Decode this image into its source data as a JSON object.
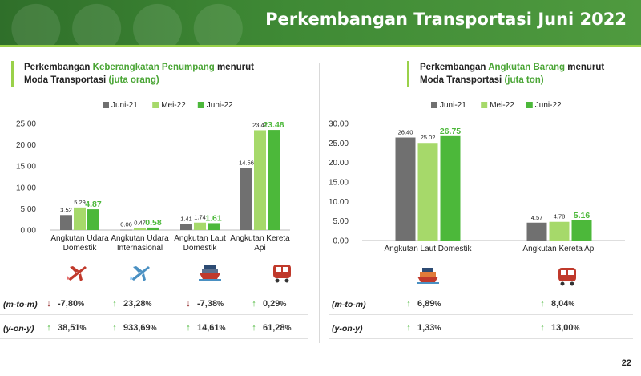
{
  "header": {
    "title": "Perkembangan Transportasi Juni 2022"
  },
  "colors": {
    "series": [
      "#707070",
      "#a6d96a",
      "#4cb83a"
    ],
    "accent": "#4aa535",
    "down": "#8b1a1a"
  },
  "left": {
    "title_line1_pre": "Perkembangan ",
    "title_line1_hl": "Keberangkatan Penumpang",
    "title_line1_post": " menurut",
    "title_line2_pre": "Moda Transportasi ",
    "title_line2_hl": "(juta orang)",
    "icons": [
      "airplane-icon",
      "airplane-international-icon",
      "ship-icon",
      "train-icon"
    ],
    "rows": [
      {
        "label": "(m-to-m)",
        "values": [
          {
            "dir": "down",
            "num": "-7,80",
            "pct": "%"
          },
          {
            "dir": "up",
            "num": "23,28",
            "pct": "%"
          },
          {
            "dir": "down",
            "num": "-7,38",
            "pct": "%"
          },
          {
            "dir": "up",
            "num": "0,29",
            "pct": "%"
          }
        ]
      },
      {
        "label": "(y-on-y)",
        "values": [
          {
            "dir": "up",
            "num": "38,51",
            "pct": "%"
          },
          {
            "dir": "up",
            "num": "933,69",
            "pct": "%"
          },
          {
            "dir": "up",
            "num": "14,61",
            "pct": "%"
          },
          {
            "dir": "up",
            "num": "61,28",
            "pct": "%"
          }
        ]
      }
    ]
  },
  "right": {
    "title_line1_pre": "Perkembangan ",
    "title_line1_hl": "Angkutan Barang",
    "title_line1_post": " menurut",
    "title_line2_pre": "Moda Transportasi ",
    "title_line2_hl": "(juta ton)",
    "icons": [
      "cargo-ship-icon",
      "train-icon"
    ],
    "rows": [
      {
        "label": "(m-to-m)",
        "values": [
          {
            "dir": "up",
            "num": "6,89",
            "pct": "%"
          },
          {
            "dir": "up",
            "num": "8,04",
            "pct": "%"
          }
        ]
      },
      {
        "label": "(y-on-y)",
        "values": [
          {
            "dir": "up",
            "num": "1,33",
            "pct": "%"
          },
          {
            "dir": "up",
            "num": "13,00",
            "pct": "%"
          }
        ]
      }
    ]
  },
  "page_number": "22",
  "chart_data": [
    {
      "type": "bar",
      "categories": [
        [
          "Angkutan Udara",
          "Domestik"
        ],
        [
          "Angkutan Udara",
          "Internasional"
        ],
        [
          "Angkutan Laut",
          "Domestik"
        ],
        [
          "Angkutan Kereta",
          "Api"
        ]
      ],
      "series": [
        {
          "name": "Juni-21",
          "values": [
            3.52,
            0.06,
            1.41,
            14.56
          ],
          "labels": [
            "3.52",
            "0.06",
            "1.41",
            "14.56"
          ]
        },
        {
          "name": "Mei-22",
          "values": [
            5.29,
            0.47,
            1.74,
            23.41
          ],
          "labels": [
            "5.29",
            "0.47",
            "1.74",
            "23.41"
          ]
        },
        {
          "name": "Juni-22",
          "values": [
            4.87,
            0.58,
            1.61,
            23.48
          ],
          "labels": [
            "4.87",
            "0.58",
            "1.61",
            "23.48"
          ]
        }
      ],
      "ylim": [
        0,
        25
      ],
      "yticks": [
        "0.00",
        "5.00",
        "10.00",
        "15.00",
        "20.00",
        "25.00"
      ],
      "legend": "top",
      "grid": false
    },
    {
      "type": "bar",
      "categories": [
        [
          "Angkutan Laut Domestik"
        ],
        [
          "Angkutan Kereta Api"
        ]
      ],
      "series": [
        {
          "name": "Juni-21",
          "values": [
            26.4,
            4.57
          ],
          "labels": [
            "26.40",
            "4.57"
          ]
        },
        {
          "name": "Mei-22",
          "values": [
            25.02,
            4.78
          ],
          "labels": [
            "25.02",
            "4.78"
          ]
        },
        {
          "name": "Juni-22",
          "values": [
            26.75,
            5.16
          ],
          "labels": [
            "26.75",
            "5.16"
          ]
        }
      ],
      "ylim": [
        0,
        30
      ],
      "yticks": [
        "0.00",
        "5.00",
        "10.00",
        "15.00",
        "20.00",
        "25.00",
        "30.00"
      ],
      "legend": "top",
      "grid": false
    }
  ]
}
